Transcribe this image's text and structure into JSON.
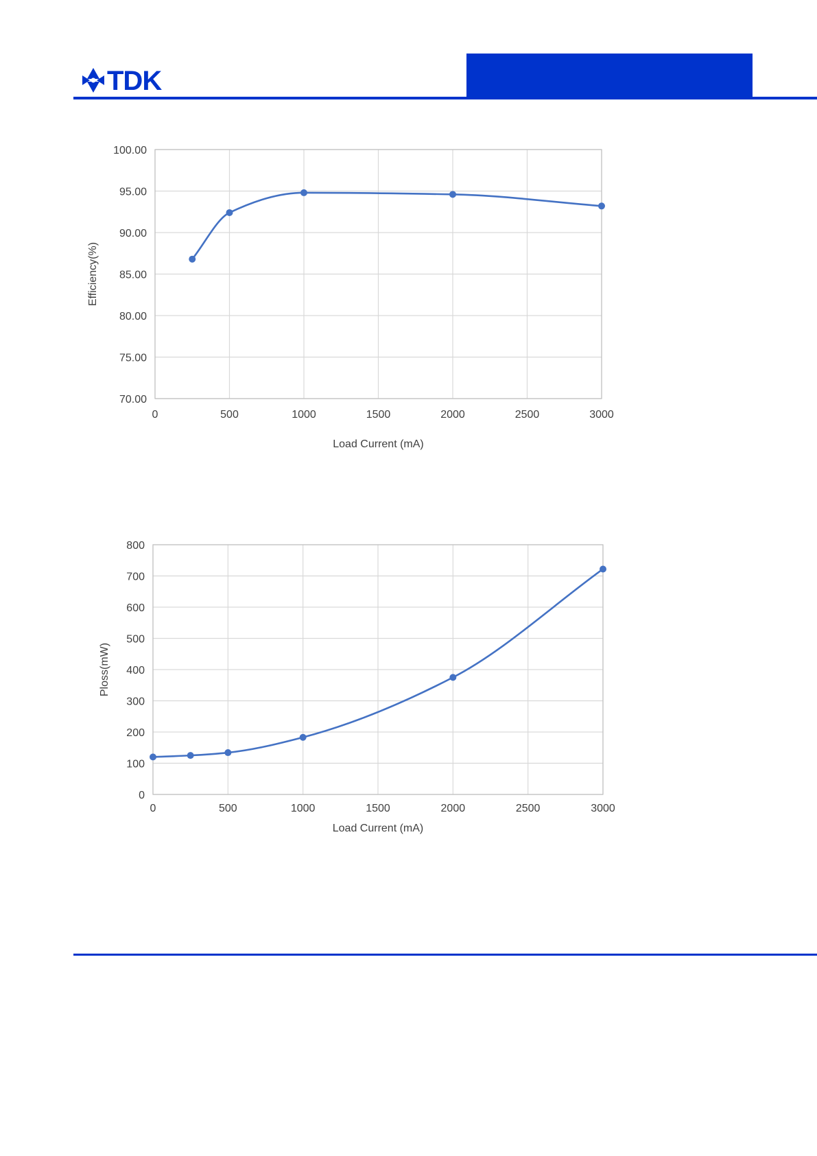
{
  "logo": {
    "text": "TDK"
  },
  "colors": {
    "brand_blue": "#0033cc",
    "series": "#4472c4",
    "grid": "#d9d9d9",
    "axis_text": "#404040"
  },
  "chart_data": [
    {
      "type": "line",
      "title": "",
      "xlabel": "Load Current (mA)",
      "ylabel": "Efficiency(%)",
      "xlim": [
        0,
        3000
      ],
      "ylim": [
        70,
        100
      ],
      "x_ticks": [
        0,
        500,
        1000,
        1500,
        2000,
        2500,
        3000
      ],
      "y_ticks": [
        70,
        75,
        80,
        85,
        90,
        95,
        100
      ],
      "y_tick_labels": [
        "70.00",
        "75.00",
        "80.00",
        "85.00",
        "90.00",
        "95.00",
        "100.00"
      ],
      "grid": true,
      "legend": "none",
      "smooth": true,
      "series": [
        {
          "x": [
            250,
            500,
            1000,
            2000,
            3000
          ],
          "y": [
            86.8,
            92.4,
            94.8,
            94.6,
            93.2
          ]
        }
      ]
    },
    {
      "type": "line",
      "title": "",
      "xlabel": "Load Current (mA)",
      "ylabel": "Ploss(mW)",
      "xlim": [
        0,
        3000
      ],
      "ylim": [
        0,
        800
      ],
      "x_ticks": [
        0,
        500,
        1000,
        1500,
        2000,
        2500,
        3000
      ],
      "y_ticks": [
        0,
        100,
        200,
        300,
        400,
        500,
        600,
        700,
        800
      ],
      "y_tick_labels": [
        "0",
        "100",
        "200",
        "300",
        "400",
        "500",
        "600",
        "700",
        "800"
      ],
      "grid": true,
      "legend": "none",
      "smooth": true,
      "series": [
        {
          "x": [
            0,
            250,
            500,
            1000,
            2000,
            3000
          ],
          "y": [
            120,
            125,
            134,
            183,
            375,
            722
          ]
        }
      ]
    }
  ]
}
